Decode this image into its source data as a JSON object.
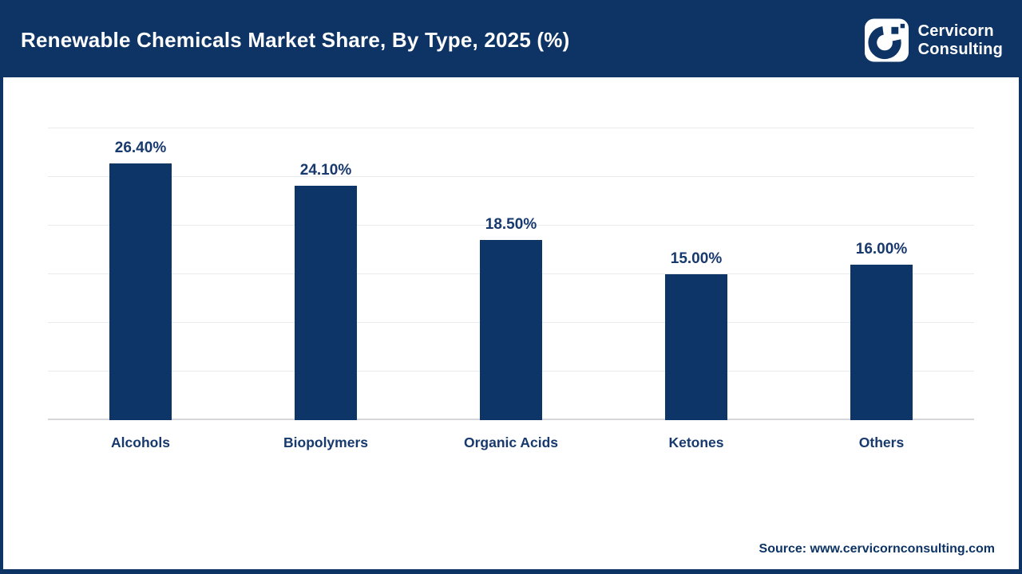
{
  "header": {
    "title": "Renewable Chemicals Market Share, By Type, 2025 (%)",
    "logo": {
      "line1": "Cervicorn",
      "line2": "Consulting"
    }
  },
  "chart_data": {
    "type": "bar",
    "title": "Renewable Chemicals Market Share, By Type, 2025 (%)",
    "categories": [
      "Alcohols",
      "Biopolymers",
      "Organic Acids",
      "Ketones",
      "Others"
    ],
    "values": [
      26.4,
      24.1,
      18.5,
      15.0,
      16.0
    ],
    "value_labels": [
      "26.40%",
      "24.10%",
      "18.50%",
      "15.00%",
      "16.00%"
    ],
    "xlabel": "",
    "ylabel": "",
    "ylim": [
      0,
      30
    ],
    "gridline_step": 5,
    "grid": true,
    "legend": false,
    "bar_color": "#0e3568",
    "label_color": "#17396d"
  },
  "footer": {
    "source_text": "Source: www.cervicornconsulting.com"
  },
  "theme": {
    "header_bg": "#0d3464",
    "frame_border": "#0d3464",
    "background": "#ffffff",
    "title_color": "#ffffff",
    "grid_color": "#e9eaec",
    "baseline_color": "#d4d6d9"
  }
}
